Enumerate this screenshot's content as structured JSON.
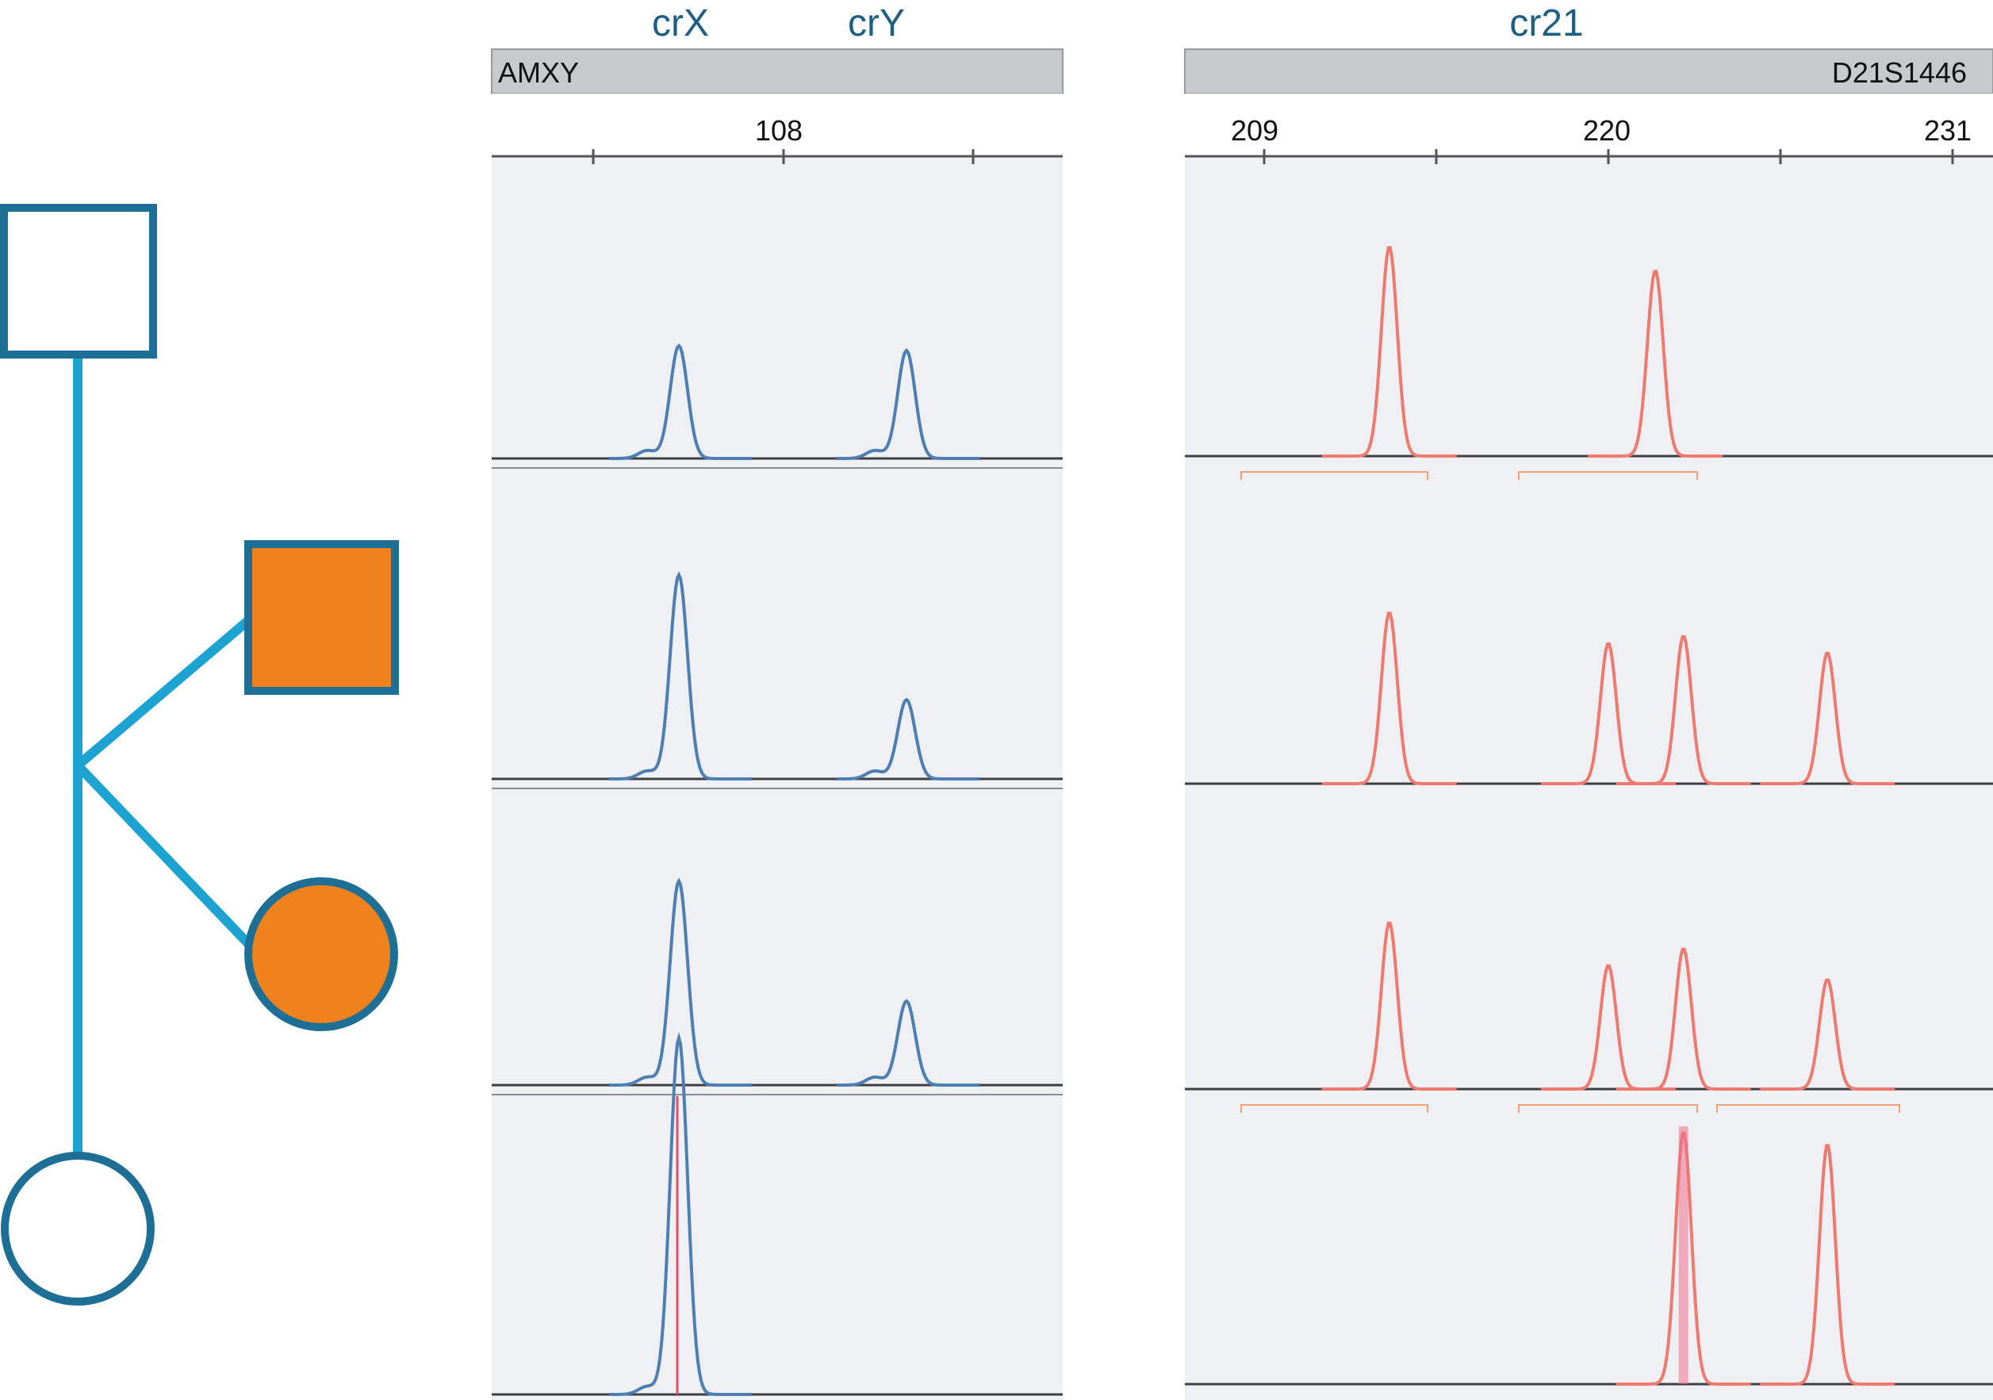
{
  "colors": {
    "pedigree_stroke": "#1e6f96",
    "pedigree_line": "#1da3d1",
    "affected_fill": "#f0821e",
    "blue_trace": "#4d7fb3",
    "red_trace": "#ef7a70",
    "header_gray": "#c8c9cc",
    "panel_bg": "#eef0f4",
    "heading_text": "#1f5f82"
  },
  "pedigree": {
    "members": [
      {
        "id": "father",
        "shape": "square",
        "affected": false
      },
      {
        "id": "affected-son",
        "shape": "square",
        "affected": true
      },
      {
        "id": "affected-daughter",
        "shape": "circle",
        "affected": true
      },
      {
        "id": "mother",
        "shape": "circle",
        "affected": false
      }
    ]
  },
  "panels": {
    "amxy": {
      "headings": [
        "crX",
        "crY"
      ],
      "marker_left": "AMXY",
      "marker_right": "",
      "ticks": [
        "108"
      ],
      "peak_colour": "blue"
    },
    "d21": {
      "headings": [
        "cr21"
      ],
      "marker_left": "",
      "marker_right": "D21S1446",
      "ticks": [
        "209",
        "220",
        "231"
      ],
      "peak_colour": "red"
    }
  },
  "chart_data": [
    {
      "type": "electropherogram",
      "marker": "AMXY",
      "x_ticks": [
        108
      ],
      "traces": [
        {
          "row": 1,
          "peaks": [
            {
              "label": "crX",
              "rel_height": 0.47
            },
            {
              "label": "crY",
              "rel_height": 0.45
            }
          ]
        },
        {
          "row": 2,
          "peaks": [
            {
              "label": "crX",
              "rel_height": 0.85
            },
            {
              "label": "crY",
              "rel_height": 0.33
            }
          ]
        },
        {
          "row": 3,
          "peaks": [
            {
              "label": "crX",
              "rel_height": 0.85
            },
            {
              "label": "crY",
              "rel_height": 0.35
            }
          ]
        },
        {
          "row": 4,
          "peaks": [
            {
              "label": "crX",
              "rel_height": 1.0
            }
          ]
        }
      ]
    },
    {
      "type": "electropherogram",
      "marker": "D21S1446",
      "x_ticks": [
        209,
        220,
        231
      ],
      "traces": [
        {
          "row": 1,
          "peaks_bp": [
            213,
            221.5
          ],
          "rel_heights": [
            0.88,
            0.78
          ]
        },
        {
          "row": 2,
          "peaks_bp": [
            213,
            220,
            222.4,
            227
          ],
          "rel_heights": [
            0.72,
            0.59,
            0.62,
            0.55
          ]
        },
        {
          "row": 3,
          "peaks_bp": [
            213,
            220,
            222.4,
            227
          ],
          "rel_heights": [
            0.7,
            0.52,
            0.59,
            0.46
          ]
        },
        {
          "row": 4,
          "peaks_bp": [
            222.4,
            227
          ],
          "rel_heights": [
            1.0,
            0.95
          ]
        }
      ]
    }
  ]
}
